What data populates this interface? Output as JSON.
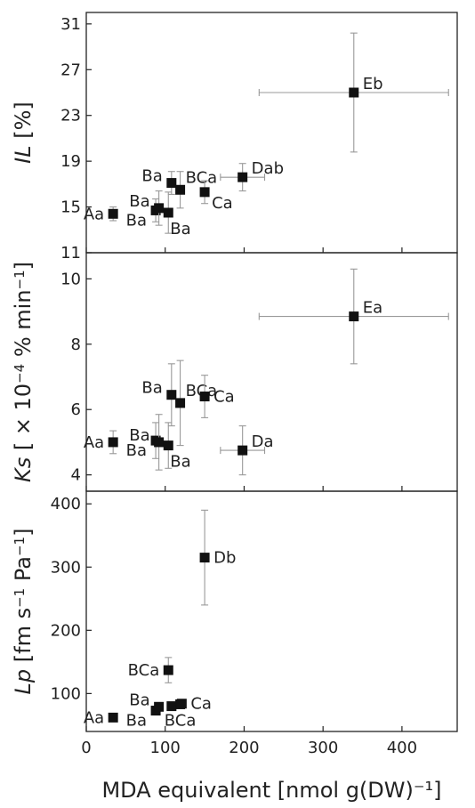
{
  "chart_data": [
    {
      "type": "scatter",
      "ylabel_parts": [
        "IL",
        " [%]"
      ],
      "xlabel": "MDA equivalent [nmol g(DW)⁻¹]",
      "xlim": [
        0,
        470
      ],
      "ylim": [
        11,
        32
      ],
      "yticks": [
        11,
        15,
        19,
        23,
        27,
        31
      ],
      "points": [
        {
          "x": 34,
          "y": 14.4,
          "xerr": 0,
          "yerr": 0.6,
          "label": "Aa",
          "label_pos": "left"
        },
        {
          "x": 88,
          "y": 14.7,
          "xerr": 0,
          "yerr": 1.0,
          "label": "Ba",
          "label_pos": "left-below"
        },
        {
          "x": 92,
          "y": 14.9,
          "xerr": 0,
          "yerr": 1.5,
          "label": "Ba",
          "label_pos": "left-above"
        },
        {
          "x": 104,
          "y": 14.5,
          "xerr": 0,
          "yerr": 1.8,
          "label": "Ba",
          "label_pos": "below-right"
        },
        {
          "x": 108,
          "y": 17.1,
          "xerr": 0,
          "yerr": 1.0,
          "label": "Ba",
          "label_pos": "left-above"
        },
        {
          "x": 119,
          "y": 16.5,
          "xerr": 0,
          "yerr": 1.6,
          "label": "BCa",
          "label_pos": "above-right"
        },
        {
          "x": 150,
          "y": 16.3,
          "xerr": 0,
          "yerr": 1.0,
          "label": "Ca",
          "label_pos": "right-below"
        },
        {
          "x": 198,
          "y": 17.6,
          "xerr": 28,
          "yerr": 1.2,
          "label": "Dab",
          "label_pos": "right-above"
        },
        {
          "x": 339,
          "y": 25.0,
          "xerr": 120,
          "yerr": 5.2,
          "label": "Eb",
          "label_pos": "right-above"
        }
      ]
    },
    {
      "type": "scatter",
      "ylabel_parts": [
        "Ks",
        " [ × 10",
        "−4",
        " % min",
        "−1",
        "]"
      ],
      "xlabel": "MDA equivalent [nmol g(DW)⁻¹]",
      "xlim": [
        0,
        470
      ],
      "ylim": [
        3.5,
        10.8
      ],
      "yticks": [
        4,
        6,
        8,
        10
      ],
      "points": [
        {
          "x": 34,
          "y": 5.0,
          "xerr": 0,
          "yerr": 0.35,
          "label": "Aa",
          "label_pos": "left"
        },
        {
          "x": 88,
          "y": 5.05,
          "xerr": 0,
          "yerr": 0.55,
          "label": "Ba",
          "label_pos": "left-below"
        },
        {
          "x": 92,
          "y": 5.0,
          "xerr": 0,
          "yerr": 0.85,
          "label": "Ba",
          "label_pos": "left-above"
        },
        {
          "x": 104,
          "y": 4.9,
          "xerr": 0,
          "yerr": 0.7,
          "label": "Ba",
          "label_pos": "below-right"
        },
        {
          "x": 108,
          "y": 6.45,
          "xerr": 0,
          "yerr": 0.95,
          "label": "Ba",
          "label_pos": "left-above"
        },
        {
          "x": 119,
          "y": 6.2,
          "xerr": 0,
          "yerr": 1.3,
          "label": "BCa",
          "label_pos": "above-right"
        },
        {
          "x": 150,
          "y": 6.4,
          "xerr": 0,
          "yerr": 0.65,
          "label": "Ca",
          "label_pos": "right"
        },
        {
          "x": 198,
          "y": 4.75,
          "xerr": 28,
          "yerr": 0.75,
          "label": "Da",
          "label_pos": "right-above"
        },
        {
          "x": 339,
          "y": 8.85,
          "xerr": 120,
          "yerr": 1.45,
          "label": "Ea",
          "label_pos": "right-above"
        }
      ]
    },
    {
      "type": "scatter",
      "ylabel_parts": [
        "Lp",
        " [fm s",
        "−1",
        " Pa",
        "−1",
        "]"
      ],
      "xlabel": "MDA equivalent [nmol g(DW)⁻¹]",
      "xlim": [
        0,
        470
      ],
      "ylim": [
        40,
        420
      ],
      "yticks": [
        100,
        200,
        300,
        400
      ],
      "xticks": [
        0,
        100,
        200,
        300,
        400
      ],
      "points": [
        {
          "x": 34,
          "y": 62,
          "xerr": 0,
          "yerr": 0,
          "label": "Aa",
          "label_pos": "left"
        },
        {
          "x": 88,
          "y": 73,
          "xerr": 0,
          "yerr": 5,
          "label": "Ba",
          "label_pos": "left-below"
        },
        {
          "x": 92,
          "y": 79,
          "xerr": 0,
          "yerr": 5,
          "label": "Ba",
          "label_pos": "left-above"
        },
        {
          "x": 104,
          "y": 137,
          "xerr": 0,
          "yerr": 20,
          "label": "BCa",
          "label_pos": "left"
        },
        {
          "x": 108,
          "y": 80,
          "xerr": 0,
          "yerr": 5,
          "label": "",
          "label_pos": "none"
        },
        {
          "x": 119,
          "y": 83,
          "xerr": 0,
          "yerr": 5,
          "label": "BCa",
          "label_pos": "below"
        },
        {
          "x": 121,
          "y": 84,
          "xerr": 0,
          "yerr": 0,
          "label": "Ca",
          "label_pos": "right"
        },
        {
          "x": 150,
          "y": 315,
          "xerr": 0,
          "yerr": 75,
          "label": "Db",
          "label_pos": "right"
        }
      ]
    }
  ]
}
